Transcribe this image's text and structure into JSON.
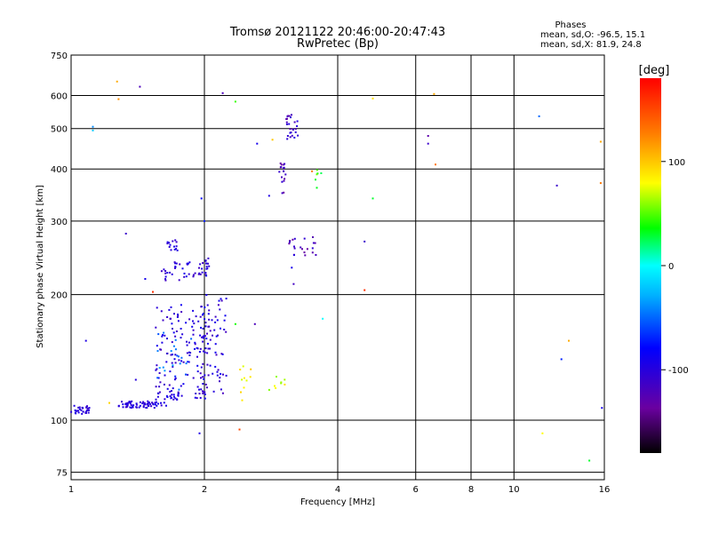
{
  "chart_data": {
    "type": "scatter",
    "title": "Tromsø 20121122 20:46:00-20:47:43",
    "subtitle": "RwPretec (Bp)",
    "xlabel": "Frequency [MHz]",
    "ylabel": "Stationary phase Virtual Height [km]",
    "x_scale": "log",
    "y_scale": "log",
    "xlim": [
      1,
      16
    ],
    "ylim": [
      72,
      750
    ],
    "x_ticks": [
      1,
      2,
      4,
      6,
      8,
      10,
      16
    ],
    "y_ticks": [
      75,
      100,
      200,
      300,
      400,
      500,
      600,
      750
    ],
    "phases": {
      "header": "Phases",
      "o_line": "mean, sd,O: -96.5, 15.1",
      "x_line": "mean, sd,X: 81.9, 24.8"
    },
    "colorbar": {
      "unit": "[deg]",
      "range": [
        -180,
        180
      ],
      "ticks": [
        100,
        0,
        -100
      ]
    },
    "grid": true,
    "point_groups": [
      {
        "n": 30,
        "x": [
          1.0,
          1.1
        ],
        "y": [
          103,
          109
        ],
        "phase": [
          -110,
          -92
        ]
      },
      {
        "n": 60,
        "x": [
          1.28,
          1.55
        ],
        "y": [
          107,
          111
        ],
        "phase": [
          -112,
          -92
        ]
      },
      {
        "n": 28,
        "x": [
          1.55,
          1.75
        ],
        "y": [
          108,
          118
        ],
        "phase": [
          -110,
          -88
        ]
      },
      {
        "n": 130,
        "x": [
          1.55,
          2.05
        ],
        "y": [
          112,
          190
        ],
        "phase": [
          -118,
          -85
        ]
      },
      {
        "n": 70,
        "x": [
          1.95,
          2.25
        ],
        "y": [
          115,
          200
        ],
        "phase": [
          -118,
          -85
        ]
      },
      {
        "n": 22,
        "x": [
          1.55,
          1.9
        ],
        "y": [
          118,
          165
        ],
        "phase": [
          -70,
          -30
        ]
      },
      {
        "n": 45,
        "x": [
          1.6,
          2.05
        ],
        "y": [
          215,
          240
        ],
        "phase": [
          -115,
          -90
        ]
      },
      {
        "n": 14,
        "x": [
          1.65,
          1.75
        ],
        "y": [
          255,
          275
        ],
        "phase": [
          -112,
          -92
        ]
      },
      {
        "n": 8,
        "x": [
          2.0,
          2.05
        ],
        "y": [
          230,
          245
        ],
        "phase": [
          -112,
          -95
        ]
      },
      {
        "n": 22,
        "x": [
          3.1,
          3.6
        ],
        "y": [
          248,
          275
        ],
        "phase": [
          -135,
          -95
        ]
      },
      {
        "n": 26,
        "x": [
          3.05,
          3.25
        ],
        "y": [
          470,
          540
        ],
        "phase": [
          -130,
          -95
        ]
      },
      {
        "n": 18,
        "x": [
          2.95,
          3.05
        ],
        "y": [
          350,
          420
        ],
        "phase": [
          -140,
          -100
        ]
      },
      {
        "n": 6,
        "x": [
          3.55,
          3.7
        ],
        "y": [
          360,
          400
        ],
        "phase": [
          20,
          60
        ]
      },
      {
        "n": 10,
        "x": [
          2.3,
          2.6
        ],
        "y": [
          110,
          135
        ],
        "phase": [
          60,
          100
        ]
      },
      {
        "n": 8,
        "x": [
          2.8,
          3.1
        ],
        "y": [
          118,
          128
        ],
        "phase": [
          50,
          90
        ]
      }
    ],
    "points": [
      {
        "x": 1.08,
        "y": 155,
        "phase": -95
      },
      {
        "x": 1.12,
        "y": 505,
        "phase": -40
      },
      {
        "x": 1.12,
        "y": 495,
        "phase": -20
      },
      {
        "x": 1.22,
        "y": 110,
        "phase": 95
      },
      {
        "x": 1.27,
        "y": 648,
        "phase": 110
      },
      {
        "x": 1.28,
        "y": 588,
        "phase": 120
      },
      {
        "x": 1.33,
        "y": 280,
        "phase": -110
      },
      {
        "x": 1.4,
        "y": 125,
        "phase": -100
      },
      {
        "x": 1.43,
        "y": 630,
        "phase": -120
      },
      {
        "x": 1.47,
        "y": 218,
        "phase": -90
      },
      {
        "x": 1.53,
        "y": 203,
        "phase": 160
      },
      {
        "x": 1.95,
        "y": 93,
        "phase": -95
      },
      {
        "x": 1.97,
        "y": 340,
        "phase": -80
      },
      {
        "x": 2.0,
        "y": 300,
        "phase": -70
      },
      {
        "x": 2.2,
        "y": 608,
        "phase": -120
      },
      {
        "x": 2.35,
        "y": 580,
        "phase": 45
      },
      {
        "x": 2.35,
        "y": 170,
        "phase": 40
      },
      {
        "x": 2.4,
        "y": 95,
        "phase": 150
      },
      {
        "x": 2.6,
        "y": 170,
        "phase": -120
      },
      {
        "x": 2.63,
        "y": 460,
        "phase": -90
      },
      {
        "x": 2.8,
        "y": 345,
        "phase": -95
      },
      {
        "x": 2.85,
        "y": 470,
        "phase": 100
      },
      {
        "x": 3.15,
        "y": 232,
        "phase": -90
      },
      {
        "x": 3.18,
        "y": 212,
        "phase": -115
      },
      {
        "x": 3.5,
        "y": 395,
        "phase": 130
      },
      {
        "x": 3.7,
        "y": 175,
        "phase": 0
      },
      {
        "x": 4.6,
        "y": 268,
        "phase": -110
      },
      {
        "x": 4.6,
        "y": 205,
        "phase": 160
      },
      {
        "x": 4.8,
        "y": 340,
        "phase": 30
      },
      {
        "x": 4.8,
        "y": 590,
        "phase": 90
      },
      {
        "x": 6.4,
        "y": 480,
        "phase": -130
      },
      {
        "x": 6.4,
        "y": 460,
        "phase": -110
      },
      {
        "x": 6.6,
        "y": 605,
        "phase": 110
      },
      {
        "x": 6.65,
        "y": 410,
        "phase": 130
      },
      {
        "x": 11.4,
        "y": 535,
        "phase": -50
      },
      {
        "x": 11.6,
        "y": 93,
        "phase": 80
      },
      {
        "x": 12.5,
        "y": 365,
        "phase": -110
      },
      {
        "x": 12.8,
        "y": 140,
        "phase": -70
      },
      {
        "x": 13.3,
        "y": 155,
        "phase": 110
      },
      {
        "x": 14.8,
        "y": 80,
        "phase": 30
      },
      {
        "x": 15.7,
        "y": 465,
        "phase": 110
      },
      {
        "x": 15.7,
        "y": 370,
        "phase": 130
      },
      {
        "x": 15.8,
        "y": 107,
        "phase": -90
      }
    ]
  }
}
